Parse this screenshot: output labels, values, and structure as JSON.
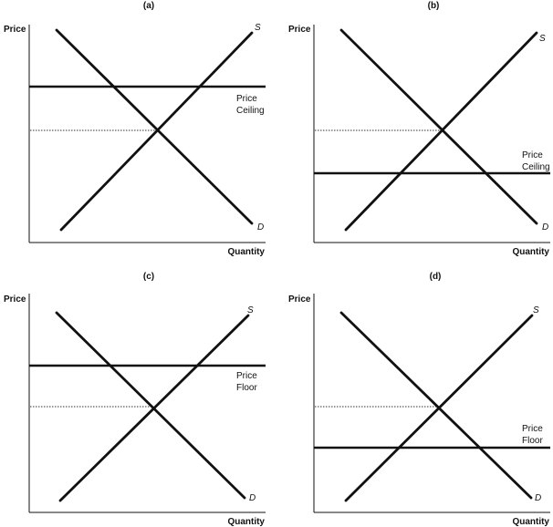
{
  "figure": {
    "panels": [
      {
        "letter": "(a)",
        "y_axis_label": "Price",
        "x_axis_label": "Quantity",
        "supply_label": "S",
        "demand_label": "D",
        "policy_label_line1": "Price",
        "policy_label_line2": "Ceiling",
        "policy_position": "above equilibrium"
      },
      {
        "letter": "(b)",
        "y_axis_label": "Price",
        "x_axis_label": "Quantity",
        "supply_label": "S",
        "demand_label": "D",
        "policy_label_line1": "Price",
        "policy_label_line2": "Ceiling",
        "policy_position": "below equilibrium"
      },
      {
        "letter": "(c)",
        "y_axis_label": "Price",
        "x_axis_label": "Quantity",
        "supply_label": "S",
        "demand_label": "D",
        "policy_label_line1": "Price",
        "policy_label_line2": "Floor",
        "policy_position": "above equilibrium"
      },
      {
        "letter": "(d)",
        "y_axis_label": "Price",
        "x_axis_label": "Quantity",
        "supply_label": "S",
        "demand_label": "D",
        "policy_label_line1": "Price",
        "policy_label_line2": "Floor",
        "policy_position": "below equilibrium"
      }
    ],
    "colors": {
      "line": "#111111",
      "equilibrium_guide": "#333333"
    }
  }
}
